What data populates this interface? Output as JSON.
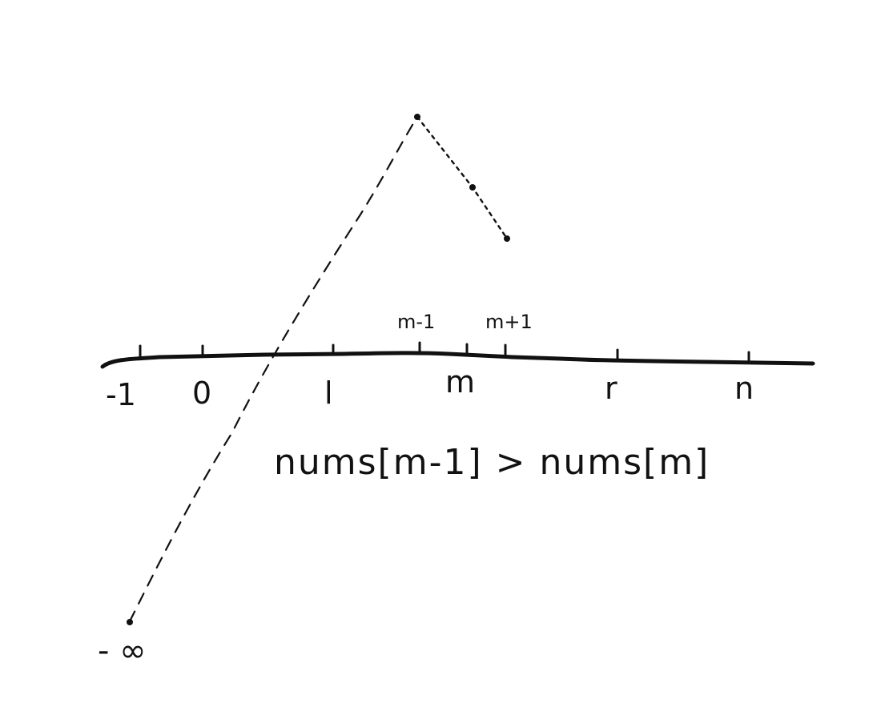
{
  "diagram": {
    "axis_ticks": [
      "-1",
      "0",
      "l",
      "m",
      "r",
      "n"
    ],
    "upper_ticks": [
      "m-1",
      "m+1"
    ],
    "condition": "nums[m-1] > nums[m]",
    "neg_infinity": "- ∞",
    "stroke_color": "#111111"
  }
}
